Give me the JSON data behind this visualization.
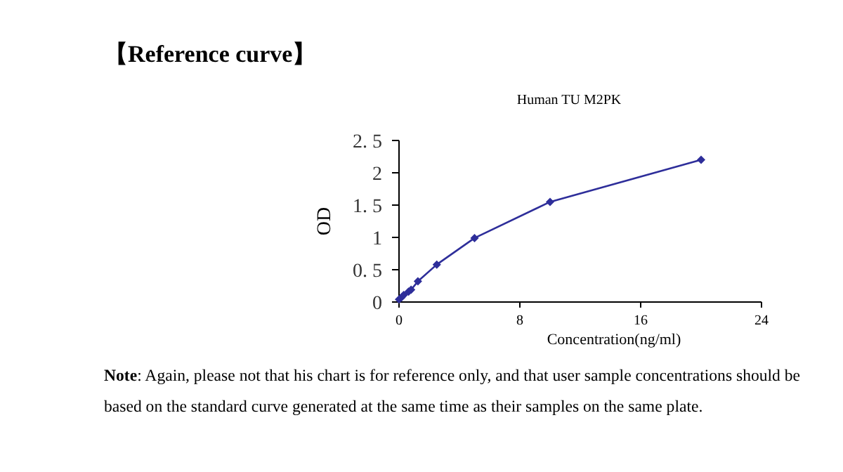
{
  "chart_data": {
    "type": "line",
    "title": "【Reference curve】",
    "subtitle": "Human TU M2PK",
    "xlabel": "Concentration(ng/ml)",
    "ylabel": "OD",
    "annotations": [
      "Note: Again, please not that his chart is for reference only, and that user sample concentrations should be based on the standard curve generated at the same time as their samples on the same plate."
    ],
    "x": [
      0,
      0.16,
      0.31,
      0.63,
      0.8,
      1.25,
      2.5,
      5,
      10,
      20
    ],
    "series": [
      {
        "color": "#2e2e9a",
        "values": [
          0.04,
          0.07,
          0.11,
          0.16,
          0.19,
          0.32,
          0.58,
          0.99,
          1.55,
          2.2
        ]
      }
    ],
    "xlim": [
      0,
      24
    ],
    "ylim": [
      0,
      2.5
    ],
    "xticks": [
      0,
      8,
      16,
      24
    ],
    "yticks": [
      0,
      {
        "value": 0.5,
        "label": "0. 5"
      },
      1,
      {
        "value": 1.5,
        "label": "1. 5"
      },
      2,
      {
        "value": 2.5,
        "label": "2. 5"
      }
    ],
    "marker": "diamond",
    "line_style": "solid",
    "grid": false
  }
}
